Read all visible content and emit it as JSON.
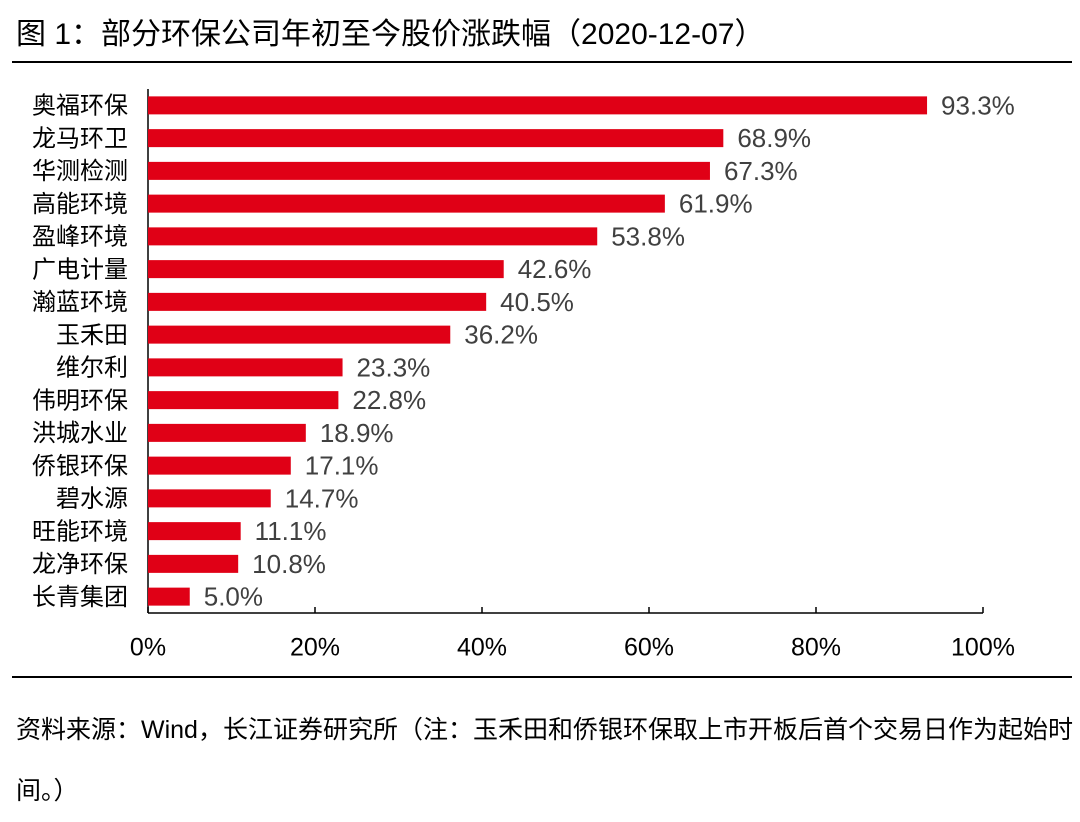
{
  "chart_data": {
    "type": "bar",
    "orientation": "horizontal",
    "title": "图 1：部分环保公司年初至今股价涨跌幅（2020-12-07）",
    "categories": [
      "奥福环保",
      "龙马环卫",
      "华测检测",
      "高能环境",
      "盈峰环境",
      "广电计量",
      "瀚蓝环境",
      "玉禾田",
      "维尔利",
      "伟明环保",
      "洪城水业",
      "侨银环保",
      "碧水源",
      "旺能环境",
      "龙净环保",
      "长青集团"
    ],
    "values": [
      93.3,
      68.9,
      67.3,
      61.9,
      53.8,
      42.6,
      40.5,
      36.2,
      23.3,
      22.8,
      18.9,
      17.1,
      14.7,
      11.1,
      10.8,
      5.0
    ],
    "value_labels": [
      "93.3%",
      "68.9%",
      "67.3%",
      "61.9%",
      "53.8%",
      "42.6%",
      "40.5%",
      "36.2%",
      "23.3%",
      "22.8%",
      "18.9%",
      "17.1%",
      "14.7%",
      "11.1%",
      "10.8%",
      "5.0%"
    ],
    "color": "#e00016",
    "xlim": [
      0,
      100
    ],
    "xticks": [
      {
        "value": 0,
        "label": "0%"
      },
      {
        "value": 20,
        "label": "20%"
      },
      {
        "value": 40,
        "label": "40%"
      },
      {
        "value": 60,
        "label": "60%"
      },
      {
        "value": 80,
        "label": "80%"
      },
      {
        "value": 100,
        "label": "100%"
      }
    ],
    "grid": false,
    "source": "资料来源：Wind，长江证券研究所（注：玉禾田和侨银环保取上市开板后首个交易日作为起始时间。）"
  }
}
